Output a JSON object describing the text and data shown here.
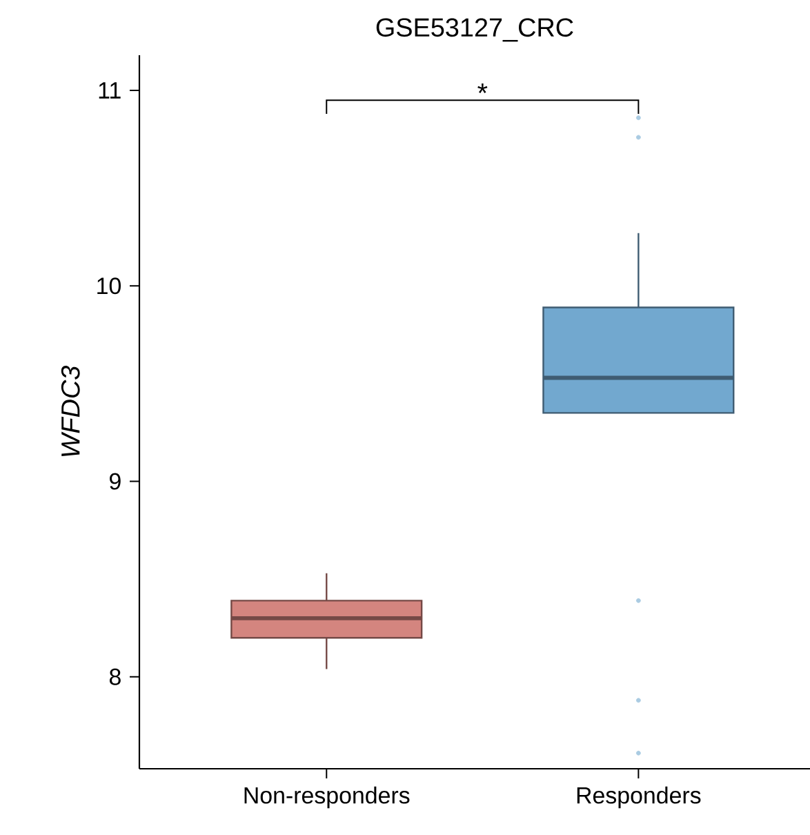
{
  "chart_data": {
    "type": "box",
    "title": "GSE53127_CRC",
    "ylabel": "WFDC3",
    "categories": [
      "Non-responders",
      "Responders"
    ],
    "boxes": [
      {
        "low": 8.04,
        "q1": 8.2,
        "median": 8.3,
        "q3": 8.39,
        "high": 8.53
      },
      {
        "low": 9.35,
        "q1": 9.35,
        "median": 9.53,
        "q3": 9.89,
        "high": 10.27,
        "outliers": [
          10.86,
          10.76,
          8.39,
          7.88,
          7.61
        ]
      }
    ],
    "colors": [
      "#d4857f",
      "#72a8cf"
    ],
    "ylim": [
      7.53,
      11.18
    ],
    "yticks": [
      8,
      9,
      10,
      11
    ],
    "annotations": [
      "*"
    ]
  }
}
